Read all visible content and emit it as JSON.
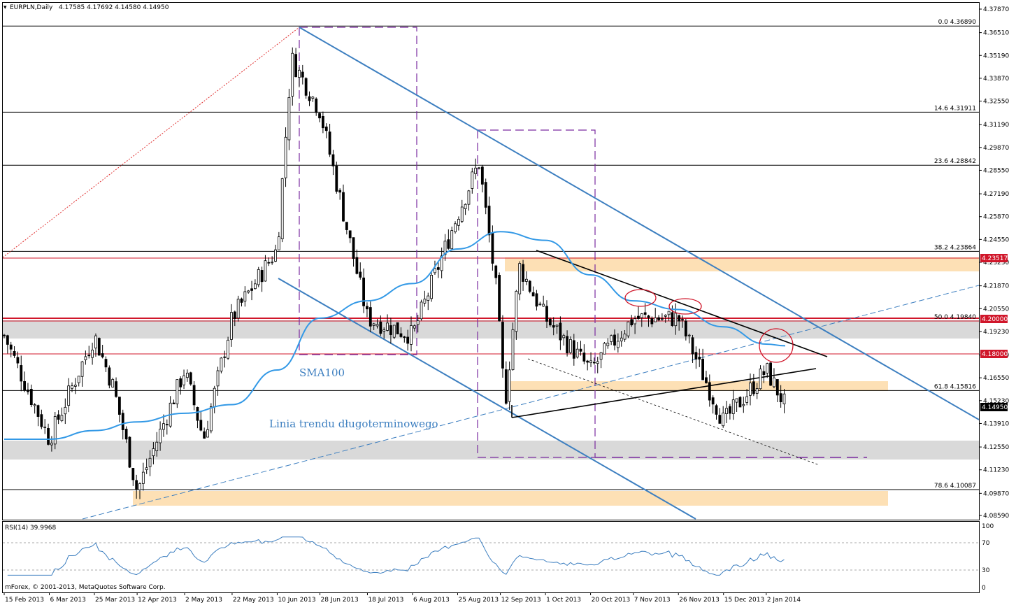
{
  "header": {
    "symbol_label": "EURPLN,Daily",
    "ohlc_label": "4.17585 4.17692 4.14580 4.14950"
  },
  "colors": {
    "sma": "#3399e6",
    "channel": "#3d7fc0",
    "support_red": "#d0162a",
    "zone_orange": "#fde0b5",
    "zone_gray": "#d9d9d9",
    "fib_box": "#7a2ba0",
    "rsi": "#3d7fc0"
  },
  "price_axis": {
    "ticks": [
      "4.37870",
      "4.36510",
      "4.35190",
      "4.33870",
      "4.32550",
      "4.31190",
      "4.29870",
      "4.28550",
      "4.27190",
      "4.25870",
      "4.24550",
      "4.23230",
      "4.21870",
      "4.20550",
      "4.19230",
      "4.17870",
      "4.16550",
      "4.15230",
      "4.13910",
      "4.12550",
      "4.11230",
      "4.09870",
      "4.08590"
    ],
    "current_price_tag": "4.14950",
    "level_tags": [
      "4.23517",
      "4.20000",
      "4.18000"
    ]
  },
  "fibonacci": [
    {
      "ratio": "0.0",
      "price": "4.36890"
    },
    {
      "ratio": "14.6",
      "price": "4.31911"
    },
    {
      "ratio": "23.6",
      "price": "4.28842"
    },
    {
      "ratio": "38.2",
      "price": "4.23864"
    },
    {
      "ratio": "50.0",
      "price": "4.19840"
    },
    {
      "ratio": "61.8",
      "price": "4.15816"
    },
    {
      "ratio": "78.6",
      "price": "4.10087"
    }
  ],
  "annotations": {
    "sma_label": "SMA100",
    "trend_label": "Linia trendu długoterminowego"
  },
  "time_axis": {
    "labels": [
      "15 Feb 2013",
      "6 Mar 2013",
      "25 Mar 2013",
      "12 Apr 2013",
      "2 May 2013",
      "22 May 2013",
      "10 Jun 2013",
      "28 Jun 2013",
      "18 Jul 2013",
      "6 Aug 2013",
      "25 Aug 2013",
      "12 Sep 2013",
      "1 Oct 2013",
      "20 Oct 2013",
      "7 Nov 2013",
      "26 Nov 2013",
      "15 Dec 2013",
      "2 Jan 2014"
    ]
  },
  "rsi": {
    "label": "RSI(14) 39.9968",
    "ticks": [
      "100",
      "70",
      "30",
      "0"
    ]
  },
  "footer": {
    "copyright": "mForex, © 2001-2013, MetaQuotes Software Corp."
  },
  "chart_data": {
    "type": "candlestick",
    "symbol": "EURPLN",
    "timeframe": "Daily",
    "ylim": [
      4.0859,
      4.3787
    ],
    "x_range": [
      "15 Feb 2013",
      "10 Jan 2014"
    ],
    "price_path": [
      {
        "date": "15 Feb 2013",
        "price": 4.19
      },
      {
        "date": "6 Mar 2013",
        "price": 4.13
      },
      {
        "date": "25 Mar 2013",
        "price": 4.19
      },
      {
        "date": "2 Apr 2013",
        "price": 4.16
      },
      {
        "date": "12 Apr 2013",
        "price": 4.1
      },
      {
        "date": "2 May 2013",
        "price": 4.17
      },
      {
        "date": "10 May 2013",
        "price": 4.13
      },
      {
        "date": "22 May 2013",
        "price": 4.2
      },
      {
        "date": "10 Jun 2013",
        "price": 4.24
      },
      {
        "date": "16 Jun 2013",
        "price": 4.35
      },
      {
        "date": "28 Jun 2013",
        "price": 4.32
      },
      {
        "date": "18 Jul 2013",
        "price": 4.2
      },
      {
        "date": "6 Aug 2013",
        "price": 4.19
      },
      {
        "date": "25 Aug 2013",
        "price": 4.26
      },
      {
        "date": "3 Sep 2013",
        "price": 4.29
      },
      {
        "date": "10 Sep 2013",
        "price": 4.22
      },
      {
        "date": "14 Sep 2013",
        "price": 4.15
      },
      {
        "date": "20 Sep 2013",
        "price": 4.23
      },
      {
        "date": "1 Oct 2013",
        "price": 4.2
      },
      {
        "date": "20 Oct 2013",
        "price": 4.17
      },
      {
        "date": "7 Nov 2013",
        "price": 4.2
      },
      {
        "date": "26 Nov 2013",
        "price": 4.2
      },
      {
        "date": "15 Dec 2013",
        "price": 4.14
      },
      {
        "date": "2 Jan 2014",
        "price": 4.17
      },
      {
        "date": "10 Jan 2014",
        "price": 4.1495
      }
    ],
    "sma100": [
      {
        "date": "15 Feb 2013",
        "value": 4.13
      },
      {
        "date": "6 Mar 2013",
        "value": 4.13
      },
      {
        "date": "25 Mar 2013",
        "value": 4.135
      },
      {
        "date": "12 Apr 2013",
        "value": 4.14
      },
      {
        "date": "2 May 2013",
        "value": 4.145
      },
      {
        "date": "22 May 2013",
        "value": 4.15
      },
      {
        "date": "10 Jun 2013",
        "value": 4.17
      },
      {
        "date": "28 Jun 2013",
        "value": 4.2
      },
      {
        "date": "18 Jul 2013",
        "value": 4.21
      },
      {
        "date": "6 Aug 2013",
        "value": 4.22
      },
      {
        "date": "25 Aug 2013",
        "value": 4.24
      },
      {
        "date": "12 Sep 2013",
        "value": 4.25
      },
      {
        "date": "1 Oct 2013",
        "value": 4.245
      },
      {
        "date": "20 Oct 2013",
        "value": 4.225
      },
      {
        "date": "7 Nov 2013",
        "value": 4.21
      },
      {
        "date": "26 Nov 2013",
        "value": 4.205
      },
      {
        "date": "15 Dec 2013",
        "value": 4.195
      },
      {
        "date": "2 Jan 2014",
        "value": 4.185
      },
      {
        "date": "10 Jan 2014",
        "value": 4.184
      }
    ],
    "horizontal_levels": [
      4.23517,
      4.2,
      4.18
    ],
    "fib_levels": [
      4.3689,
      4.31911,
      4.28842,
      4.23864,
      4.1984,
      4.15816,
      4.10087
    ],
    "rsi_period": 14,
    "rsi_last": 39.9968,
    "rsi_levels": [
      70,
      30
    ],
    "grid": false
  }
}
